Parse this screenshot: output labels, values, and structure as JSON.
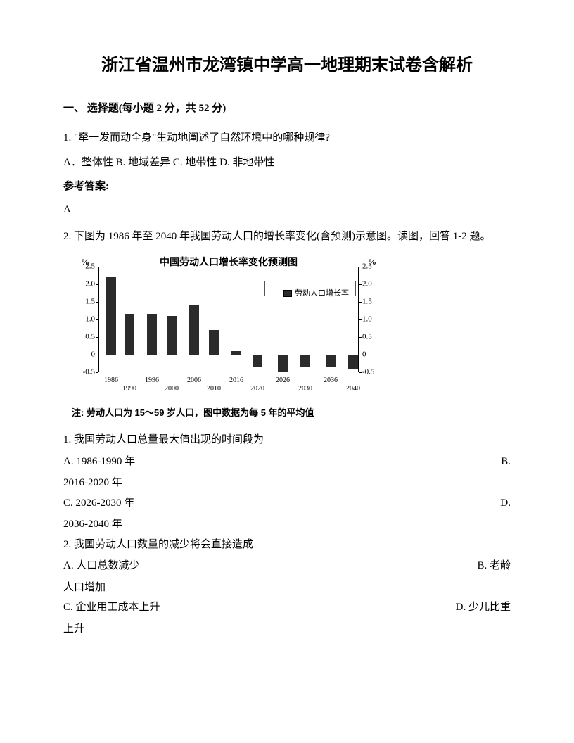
{
  "title": "浙江省温州市龙湾镇中学高一地理期末试卷含解析",
  "section1": {
    "heading": "一、 选择题(每小题 2 分，共 52 分)"
  },
  "q1": {
    "stem": "1. \"牵一发而动全身\"生动地阐述了自然环境中的哪种规律?",
    "opts": "A．整体性     B.  地域差异         C.  地带性         D.  非地带性",
    "ansLabel": "参考答案:",
    "ansValue": "A"
  },
  "q2": {
    "stem": "2. 下图为 1986 年至 2040 年我国劳动人口的增长率变化(含预测)示意图。读图，回答 1-2 题。",
    "chart": {
      "title": "中国劳动人口增长率变化预测图",
      "yUnit": "%",
      "ymin": -0.5,
      "ymax": 2.5,
      "ystep": 0.5,
      "ticks": [
        "2.5",
        "2.0",
        "1.5",
        "1.0",
        "0.5",
        "0",
        "-0.5"
      ],
      "legend": "劳动人口增长率",
      "barColor": "#2b2b2b",
      "years": [
        "1986",
        "1990",
        "1996",
        "2000",
        "2006",
        "2010",
        "2016",
        "2020",
        "2026",
        "2030",
        "2036",
        "2040"
      ],
      "values": [
        2.2,
        1.15,
        1.15,
        1.1,
        1.4,
        0.7,
        0.1,
        -0.35,
        -0.5,
        -0.35,
        -0.35,
        -0.4
      ],
      "xPosPx": [
        18,
        44,
        76,
        104,
        136,
        164,
        196,
        226,
        262,
        294,
        330,
        362
      ],
      "xLabelsTop": [
        "1986",
        "",
        "1996",
        "",
        "2006",
        "",
        "2016",
        "",
        "",
        "2026",
        "",
        "2036",
        ""
      ],
      "xLabelsBottom": [
        "",
        "1990",
        "",
        "2000",
        "",
        "2010",
        "",
        "2020",
        "",
        "",
        "2030",
        "",
        "2040"
      ]
    },
    "note": "注: 劳动人口为 15～59 岁人口，图中数据为每 5 年的平均值",
    "sub1": {
      "stem": "1.  我国劳动人口总量最大值出现的时间段为",
      "a": "A.  1986-1990 年",
      "b": "B.",
      "bLine": "2016-2020 年",
      "c": "C.  2026-2030 年",
      "d": "D.",
      "dLine": "2036-2040 年"
    },
    "sub2": {
      "stem": "2.  我国劳动人口数量的减少将会直接造成",
      "a": "A.  人口总数减少",
      "b": "B.  老龄",
      "bLine": "人口增加",
      "c": "C.  企业用工成本上升",
      "d": "D.  少儿比重",
      "dLine": "上升"
    }
  }
}
